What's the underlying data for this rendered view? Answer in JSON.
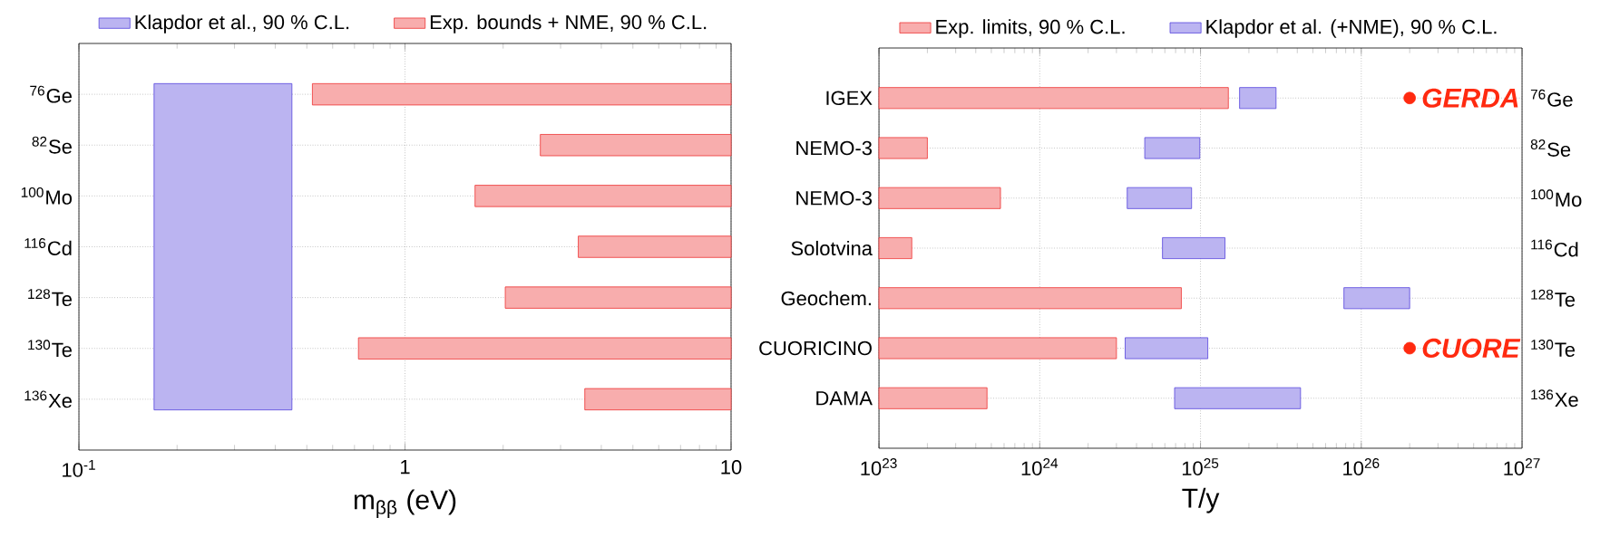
{
  "chart_data": [
    {
      "type": "bar",
      "orientation": "horizontal",
      "log": "x",
      "grid": true,
      "legend": "top",
      "categories": [
        "$^{76}$Ge",
        "$^{82}$Se",
        "$^{100}$Mo",
        "$^{116}$Cd",
        "$^{128}$Te",
        "$^{130}$Te",
        "$^{136}$Xe"
      ],
      "xlim": [
        0.1,
        10
      ],
      "xticks": [
        {
          "value": 0.1,
          "label": "10$^{-1}$"
        },
        1,
        10
      ],
      "xlabel": "m$_{ββ}$ (eV)",
      "bands": [
        {
          "axis": "x",
          "from": 0.17,
          "to": 0.45,
          "label": "Klapdor et al., 90 % C.L.",
          "color": "#5544dd"
        }
      ],
      "series": [
        {
          "name": "Exp. bounds + NME, 90 % C.L.",
          "color": "#ee3333",
          "base": [
            0.52,
            2.6,
            1.64,
            3.4,
            2.03,
            0.72,
            3.56
          ],
          "values": [
            9.48,
            7.4,
            8.36,
            6.6,
            7.97,
            9.28,
            6.44
          ]
        }
      ]
    },
    {
      "type": "bar",
      "orientation": "horizontal",
      "log": "x",
      "grid": true,
      "legend": "top",
      "categories": [
        "IGEX",
        "NEMO-3",
        "NEMO-3",
        "Solotvina",
        "Geochem.",
        "CUORICINO",
        "DAMA"
      ],
      "xlim": [
        1e+23,
        1e+27
      ],
      "xticks": [
        {
          "value": 1e+23,
          "label": "10$^{23}$"
        },
        {
          "value": 1e+24,
          "label": "10$^{24}$"
        },
        {
          "value": 1e+25,
          "label": "10$^{25}$"
        },
        {
          "value": 1e+26,
          "label": "10$^{26}$"
        },
        {
          "value": 1e+27,
          "label": "10$^{27}$"
        }
      ],
      "xlabel": "T/y",
      "annotations": [
        "$^{76}$Ge",
        "$^{82}$Se",
        "$^{100}$Mo",
        "$^{116}$Cd",
        "$^{128}$Te",
        "$^{130}$Te",
        "$^{136}$Xe"
      ],
      "series": [
        {
          "name": "Exp. limits, 90 % C.L.",
          "color": "#ee3333",
          "base": [
            1e+23,
            1e+23,
            1e+23,
            1e+23,
            1e+23,
            1e+23,
            1e+23
          ],
          "values": [
            1.48e+25,
            1e+23,
            4.7e+23,
            6e+22,
            7.5e+24,
            2.9e+24,
            3.7e+23
          ]
        },
        {
          "name": "Klapdor et al. (+NME), 90 % C.L.",
          "color": "#5544dd",
          "base": [
            1.75e+25,
            4.5e+24,
            3.5e+24,
            5.8e+24,
            7.8e+25,
            3.4e+24,
            6.9e+24
          ],
          "values": [
            1.2e+25,
            5.4e+24,
            5.3e+24,
            8.4e+24,
            1.22e+26,
            7.7e+24,
            3.5e+25
          ]
        },
        {
          "name": "GERDA",
          "type": "scatter",
          "marker": "circle",
          "color": "#ff2a10",
          "values": [
            2e+26,
            null,
            null,
            null,
            null,
            null,
            null
          ]
        },
        {
          "name": "CUORE",
          "type": "scatter",
          "marker": "circle",
          "color": "#ff2a10",
          "values": [
            null,
            null,
            null,
            null,
            null,
            2e+26,
            null
          ]
        }
      ]
    }
  ]
}
